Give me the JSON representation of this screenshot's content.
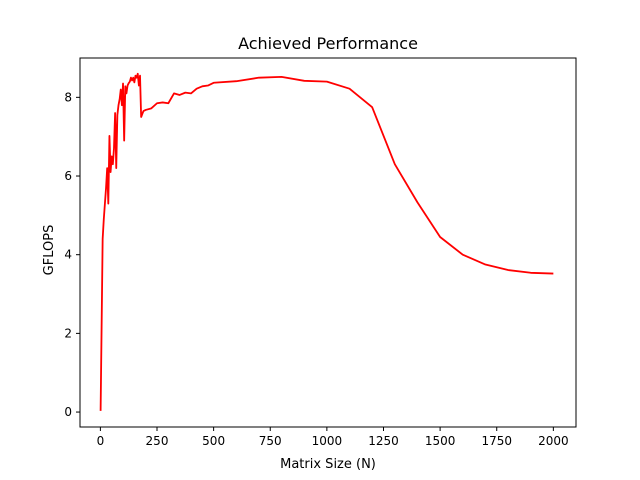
{
  "chart_data": {
    "type": "line",
    "title": "Achieved Performance",
    "xlabel": "Matrix Size (N)",
    "ylabel": "GFLOPS",
    "xlim": [
      -90,
      2100
    ],
    "ylim": [
      -0.38,
      9.0
    ],
    "x_ticks": [
      0,
      250,
      500,
      750,
      1000,
      1250,
      1500,
      1750,
      2000
    ],
    "y_ticks": [
      0,
      2,
      4,
      6,
      8
    ],
    "grid": false,
    "colors": {
      "line": "#ff0000",
      "axes": "#000000",
      "background": "#ffffff"
    },
    "series": [
      {
        "x": [
          1,
          10,
          15,
          20,
          25,
          30,
          35,
          40,
          45,
          50,
          55,
          60,
          65,
          70,
          75,
          80,
          85,
          90,
          95,
          100,
          105,
          110,
          115,
          120,
          125,
          130,
          135,
          140,
          145,
          150,
          155,
          160,
          165,
          170,
          175,
          180,
          190,
          200,
          225,
          250,
          275,
          300,
          325,
          350,
          375,
          400,
          425,
          450,
          475,
          500,
          600,
          700,
          800,
          900,
          1000,
          1100,
          1200,
          1300,
          1400,
          1500,
          1600,
          1700,
          1800,
          1900,
          2000
        ],
        "values": [
          0.03,
          4.4,
          4.9,
          5.3,
          5.7,
          6.2,
          5.3,
          7.02,
          6.1,
          6.5,
          6.3,
          6.7,
          7.6,
          6.2,
          7.55,
          7.8,
          7.95,
          8.2,
          7.8,
          8.35,
          6.9,
          8.28,
          8.1,
          8.3,
          8.36,
          8.4,
          8.5,
          8.43,
          8.5,
          8.38,
          8.55,
          8.5,
          8.6,
          8.3,
          8.55,
          7.5,
          7.65,
          7.68,
          7.72,
          7.85,
          7.87,
          7.85,
          8.1,
          8.06,
          8.12,
          8.1,
          8.22,
          8.28,
          8.3,
          8.37,
          8.41,
          8.5,
          8.52,
          8.42,
          8.4,
          8.22,
          7.75,
          6.3,
          5.33,
          4.45,
          4.0,
          3.75,
          3.61,
          3.54,
          3.52
        ]
      }
    ]
  }
}
